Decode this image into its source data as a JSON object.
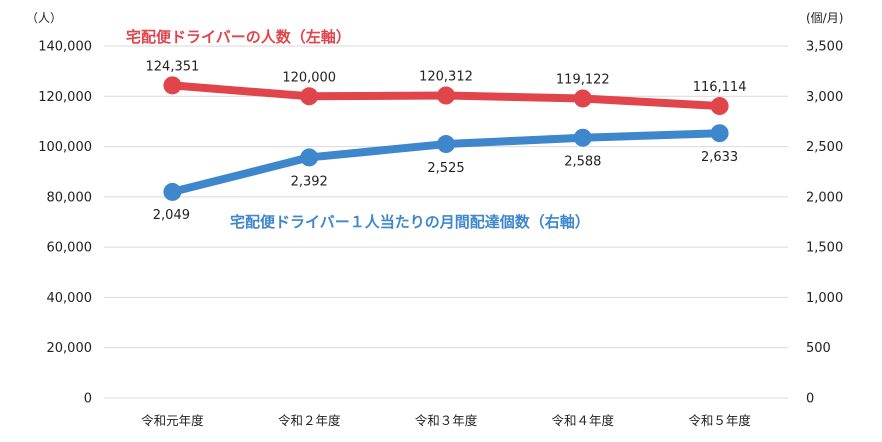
{
  "chart_data": {
    "type": "line",
    "categories": [
      "令和元年度",
      "令和２年度",
      "令和３年度",
      "令和４年度",
      "令和５年度"
    ],
    "y_left": {
      "unit_label": "（人）",
      "ylim": [
        0,
        140000
      ],
      "ticks": [
        "0",
        "20,000",
        "40,000",
        "60,000",
        "80,000",
        "100,000",
        "120,000",
        "140,000"
      ]
    },
    "y_right": {
      "unit_label": "(個/月)",
      "ylim": [
        0,
        3500
      ],
      "ticks": [
        "0",
        "500",
        "1,000",
        "1,500",
        "2,000",
        "2,500",
        "3,000",
        "3,500"
      ]
    },
    "series": [
      {
        "name": "宅配便ドライバーの人数（左軸）",
        "axis": "left",
        "color": "#e0454b",
        "values": [
          124351,
          120000,
          120312,
          119122,
          116114
        ],
        "labels": [
          "124,351",
          "120,000",
          "120,312",
          "119,122",
          "116,114"
        ]
      },
      {
        "name": "宅配便ドライバー１人当たりの月間配達個数（右軸）",
        "axis": "right",
        "color": "#3f87cc",
        "values": [
          2049,
          2392,
          2525,
          2588,
          2633
        ],
        "labels": [
          "2,049",
          "2,392",
          "2,525",
          "2,588",
          "2,633"
        ]
      }
    ],
    "grid": true,
    "grid_color": "#d9d9d9"
  }
}
